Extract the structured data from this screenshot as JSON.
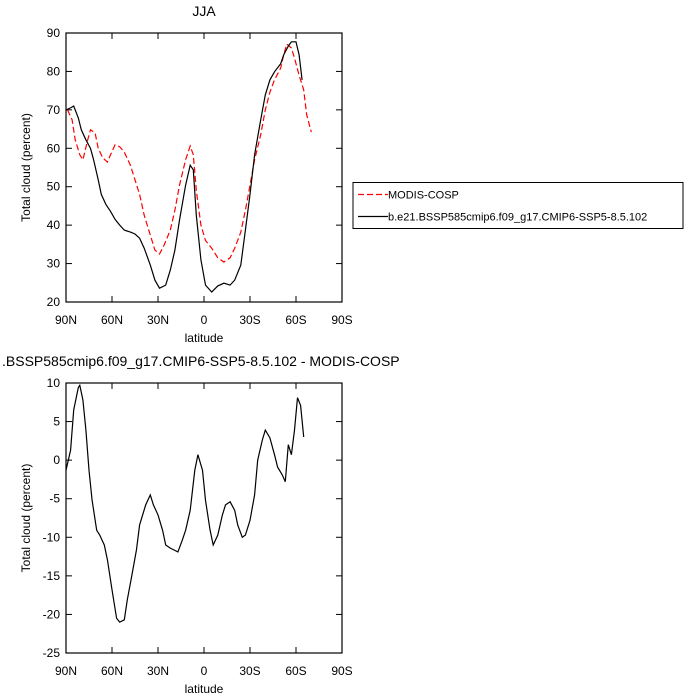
{
  "chart_data": [
    {
      "type": "line",
      "title": "JJA",
      "x_label": "latitude",
      "y_label": "Total cloud (percent)",
      "xlim": [
        90,
        -90
      ],
      "xticks": [
        {
          "value": 90,
          "label": "90N"
        },
        {
          "value": 60,
          "label": "60N"
        },
        {
          "value": 30,
          "label": "30N"
        },
        0,
        {
          "value": -30,
          "label": "30S"
        },
        {
          "value": -60,
          "label": "60S"
        },
        {
          "value": -90,
          "label": "90S"
        }
      ],
      "ylim": [
        20,
        90
      ],
      "yticks": [
        20,
        30,
        40,
        50,
        60,
        70,
        80,
        90
      ],
      "legend": "right",
      "series": [
        {
          "name": "MODIS-COSP",
          "color": "#ff0000",
          "line_style": "dashed",
          "x": [
            89,
            86,
            84,
            81,
            79,
            76,
            74,
            71,
            69,
            66,
            63,
            61,
            58,
            55,
            52,
            48,
            45,
            42,
            39,
            35,
            32,
            29,
            26,
            22,
            19,
            16,
            12,
            9,
            7,
            5,
            2,
            -1,
            -5,
            -9,
            -13,
            -17,
            -20,
            -24,
            -27,
            -30,
            -33,
            -37,
            -40,
            -43,
            -46,
            -50,
            -52,
            -54,
            -57,
            -59,
            -62,
            -65,
            -67,
            -70
          ],
          "values": [
            70,
            67.4,
            62.2,
            58.3,
            57,
            62,
            64.8,
            64,
            60,
            57.5,
            56.4,
            58.3,
            60.9,
            60.4,
            59,
            55.6,
            51.8,
            48,
            42.6,
            37.4,
            33.5,
            32.5,
            34.8,
            38.7,
            43.9,
            50.4,
            57,
            60.6,
            58.3,
            49.1,
            40,
            36,
            34,
            31.5,
            30.4,
            31.5,
            34,
            38.2,
            43.9,
            50.4,
            57,
            63.5,
            70,
            74.6,
            77.8,
            80.9,
            84.3,
            87.1,
            86.1,
            83.5,
            79,
            75.2,
            68.7,
            64.2
          ]
        },
        {
          "name": "b.e21.BSSP585cmip6.f09_g17.CMIP6-SSP5-8.5.102",
          "color": "#000000",
          "line_style": "solid",
          "x": [
            90,
            87,
            85,
            82,
            80,
            77,
            74,
            72,
            69,
            67,
            64,
            61,
            58,
            55,
            52,
            48,
            45,
            42,
            39,
            35,
            32,
            29,
            25,
            22,
            19,
            16,
            12,
            9,
            7,
            5,
            2,
            -1,
            -5,
            -9,
            -13,
            -17,
            -20,
            -24,
            -27,
            -30,
            -33,
            -37,
            -40,
            -43,
            -46,
            -50,
            -52,
            -55,
            -57,
            -60,
            -62,
            -64
          ],
          "values": [
            70,
            70.5,
            71,
            67.9,
            64.8,
            62.2,
            60,
            57,
            51.8,
            48,
            45.4,
            43.6,
            41.5,
            40,
            38.7,
            38.2,
            37.7,
            36.6,
            34,
            29.6,
            25.7,
            23.6,
            24.4,
            28.3,
            33.5,
            41.3,
            50.4,
            55.6,
            54.4,
            42.6,
            31,
            24.4,
            22.6,
            24.2,
            24.9,
            24.4,
            25.7,
            29.6,
            38.7,
            48,
            58.3,
            67.4,
            73.9,
            77.8,
            79.9,
            82,
            84.3,
            86.6,
            87.7,
            87.7,
            84.3,
            77.8
          ]
        }
      ]
    },
    {
      "type": "line",
      "title": ".BSSP585cmip6.f09_g17.CMIP6-SSP5-8.5.102 - MODIS-COSP",
      "x_label": "latitude",
      "y_label": "Total cloud (percent)",
      "xlim": [
        90,
        -90
      ],
      "xticks": [
        {
          "value": 90,
          "label": "90N"
        },
        {
          "value": 60,
          "label": "60N"
        },
        {
          "value": 30,
          "label": "30N"
        },
        0,
        {
          "value": -30,
          "label": "30S"
        },
        {
          "value": -60,
          "label": "60S"
        },
        {
          "value": -90,
          "label": "90S"
        }
      ],
      "ylim": [
        -25,
        10
      ],
      "yticks": [
        -25,
        -20,
        -15,
        -10,
        -5,
        0,
        5,
        10
      ],
      "series": [
        {
          "color": "#000000",
          "line_style": "solid",
          "x": [
            90,
            87,
            85,
            82,
            81,
            79,
            77,
            75,
            73,
            70,
            68,
            65,
            63,
            60,
            57,
            55,
            52,
            50,
            47,
            44,
            42,
            38,
            35,
            33,
            30,
            27,
            25,
            22,
            20,
            17,
            14,
            12,
            9,
            6,
            4,
            1,
            -1,
            -4,
            -6,
            -9,
            -12,
            -14,
            -17,
            -20,
            -22,
            -25,
            -27,
            -30,
            -33,
            -35,
            -38,
            -40,
            -43,
            -46,
            -48,
            -51,
            -53,
            -55,
            -57,
            -59,
            -61,
            -63,
            -65
          ],
          "values": [
            -1.3,
            1.3,
            6.5,
            9.4,
            9.7,
            7.8,
            3.9,
            -1.3,
            -5.2,
            -9.1,
            -9.7,
            -11,
            -12.9,
            -16.8,
            -20.5,
            -21,
            -20.7,
            -18.1,
            -14.9,
            -11.6,
            -8.4,
            -5.8,
            -4.5,
            -5.8,
            -7.1,
            -9.1,
            -11,
            -11.4,
            -11.6,
            -11.9,
            -10.3,
            -9.1,
            -6.5,
            -1.3,
            0.7,
            -1.3,
            -5.2,
            -9.1,
            -11,
            -9.7,
            -7.1,
            -5.8,
            -5.4,
            -6.5,
            -8.4,
            -10,
            -9.7,
            -7.8,
            -4.5,
            0,
            2.6,
            3.9,
            2.9,
            0.7,
            -0.9,
            -1.9,
            -2.8,
            2,
            0.7,
            3.9,
            8.1,
            7.1,
            3
          ]
        }
      ]
    }
  ]
}
